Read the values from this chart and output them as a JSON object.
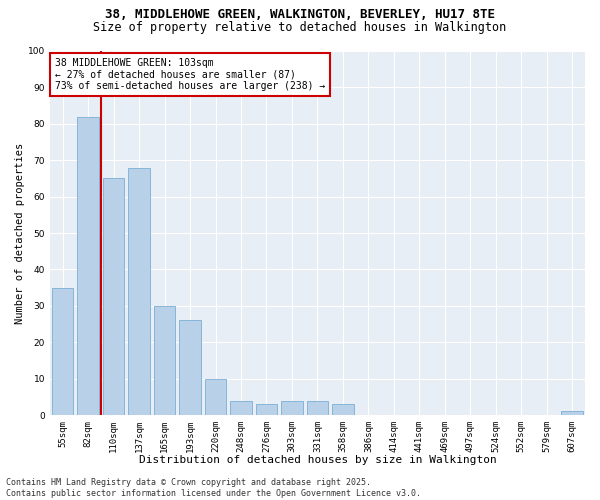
{
  "title1": "38, MIDDLEHOWE GREEN, WALKINGTON, BEVERLEY, HU17 8TE",
  "title2": "Size of property relative to detached houses in Walkington",
  "xlabel": "Distribution of detached houses by size in Walkington",
  "ylabel": "Number of detached properties",
  "bar_labels": [
    "55sqm",
    "82sqm",
    "110sqm",
    "137sqm",
    "165sqm",
    "193sqm",
    "220sqm",
    "248sqm",
    "276sqm",
    "303sqm",
    "331sqm",
    "358sqm",
    "386sqm",
    "414sqm",
    "441sqm",
    "469sqm",
    "497sqm",
    "524sqm",
    "552sqm",
    "579sqm",
    "607sqm"
  ],
  "bar_values": [
    35,
    82,
    65,
    68,
    30,
    26,
    10,
    4,
    3,
    4,
    4,
    3,
    0,
    0,
    0,
    0,
    0,
    0,
    0,
    0,
    1
  ],
  "bar_color": "#b8d0e8",
  "bar_edge_color": "#7aafd4",
  "vline_x_bar": 1.5,
  "vline_color": "#cc0000",
  "annotation_text": "38 MIDDLEHOWE GREEN: 103sqm\n← 27% of detached houses are smaller (87)\n73% of semi-detached houses are larger (238) →",
  "annotation_box_color": "#cc0000",
  "ylim": [
    0,
    100
  ],
  "yticks": [
    0,
    10,
    20,
    30,
    40,
    50,
    60,
    70,
    80,
    90,
    100
  ],
  "bg_color": "#e8eef5",
  "footer_text": "Contains HM Land Registry data © Crown copyright and database right 2025.\nContains public sector information licensed under the Open Government Licence v3.0.",
  "title1_fontsize": 9,
  "title2_fontsize": 8.5,
  "xlabel_fontsize": 8,
  "ylabel_fontsize": 7.5,
  "tick_fontsize": 6.5,
  "annotation_fontsize": 7,
  "footer_fontsize": 6
}
